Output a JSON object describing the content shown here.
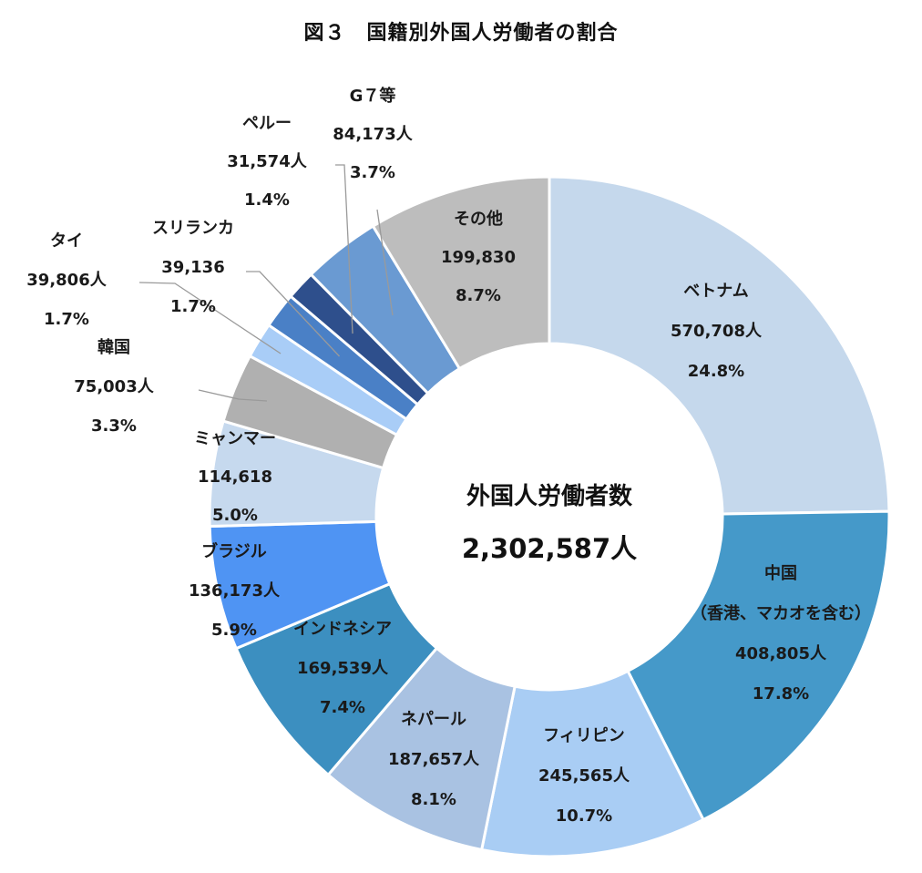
{
  "chart_data": {
    "type": "pie",
    "title": "図３　国籍別外国人労働者の割合",
    "center": {
      "label": "外国人労働者数",
      "total": "2,302,587人"
    },
    "categories": [
      "ベトナム",
      "中国\n（香港、マカオを含む）",
      "フィリピン",
      "ネパール",
      "インドネシア",
      "ブラジル",
      "ミャンマー",
      "韓国",
      "タイ",
      "スリランカ",
      "ペルー",
      "G７等",
      "その他"
    ],
    "values": [
      570708,
      408805,
      245565,
      187657,
      169539,
      136173,
      114618,
      75003,
      39806,
      39136,
      31574,
      84173,
      199830
    ],
    "percents": [
      24.8,
      17.8,
      10.7,
      8.1,
      7.4,
      5.9,
      5.0,
      3.3,
      1.7,
      1.7,
      1.4,
      3.7,
      8.7
    ],
    "slices": [
      {
        "name": "ベトナム",
        "value": "570,708人",
        "percent": "24.8%",
        "color": "#c5d8ec"
      },
      {
        "name": "中国",
        "subname": "（香港、マカオを含む）",
        "value": "408,805人",
        "percent": "17.8%",
        "color": "#4599c9"
      },
      {
        "name": "フィリピン",
        "value": "245,565人",
        "percent": "10.7%",
        "color": "#a9cdf4"
      },
      {
        "name": "ネパール",
        "value": "187,657人",
        "percent": "8.1%",
        "color": "#a9c2e2"
      },
      {
        "name": "インドネシア",
        "value": "169,539人",
        "percent": "7.4%",
        "color": "#3c8fc0"
      },
      {
        "name": "ブラジル",
        "value": "136,173人",
        "percent": "5.9%",
        "color": "#4f94f3"
      },
      {
        "name": "ミャンマー",
        "value": "114,618",
        "percent": "5.0%",
        "color": "#c6d9ee"
      },
      {
        "name": "韓国",
        "value": "75,003人",
        "percent": "3.3%",
        "color": "#b0b0b0"
      },
      {
        "name": "タイ",
        "value": "39,806人",
        "percent": "1.7%",
        "color": "#a9cdf7"
      },
      {
        "name": "スリランカ",
        "value": "39,136",
        "percent": "1.7%",
        "color": "#4a80c6"
      },
      {
        "name": "ペルー",
        "value": "31,574人",
        "percent": "1.4%",
        "color": "#2e4f8c"
      },
      {
        "name": "G７等",
        "value": "84,173人",
        "percent": "3.7%",
        "color": "#6a9ad2"
      },
      {
        "name": "その他",
        "value": "199,830",
        "percent": "8.7%",
        "color": "#bdbdbd"
      }
    ]
  }
}
